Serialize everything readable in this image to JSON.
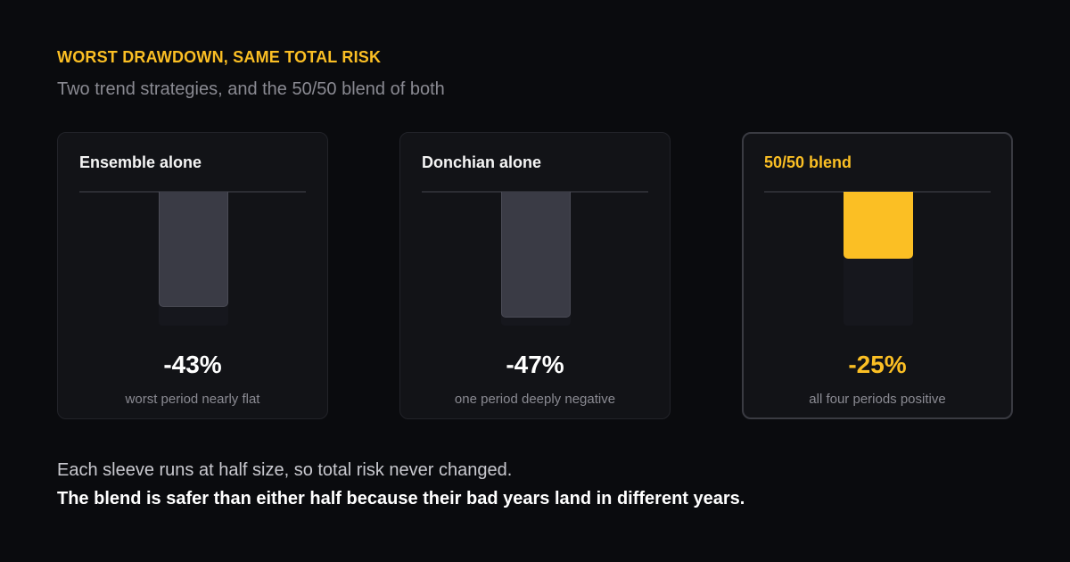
{
  "header": {
    "eyebrow": "WORST DRAWDOWN, SAME TOTAL RISK",
    "subtitle": "Two trend strategies, and the 50/50 blend of both"
  },
  "colors": {
    "accent": "#fbbf24",
    "neutral_bar": "#3a3b45",
    "background": "#0a0b0e"
  },
  "chart_data": {
    "type": "bar",
    "categories": [
      "Ensemble alone",
      "Donchian alone",
      "50/50 blend"
    ],
    "values": [
      -43,
      -47,
      -25
    ],
    "value_labels": [
      "-43%",
      "-47%",
      "-25%"
    ],
    "captions": [
      "worst period nearly flat",
      "one period deeply negative",
      "all four periods positive"
    ],
    "highlight": [
      false,
      false,
      true
    ],
    "ylim": [
      -50,
      0
    ],
    "title": "",
    "xlabel": "",
    "ylabel": ""
  },
  "footer": {
    "note": "Each sleeve runs at half size, so total risk never changed.",
    "conclusion": "The blend is safer than either half because their bad years land in different years."
  }
}
